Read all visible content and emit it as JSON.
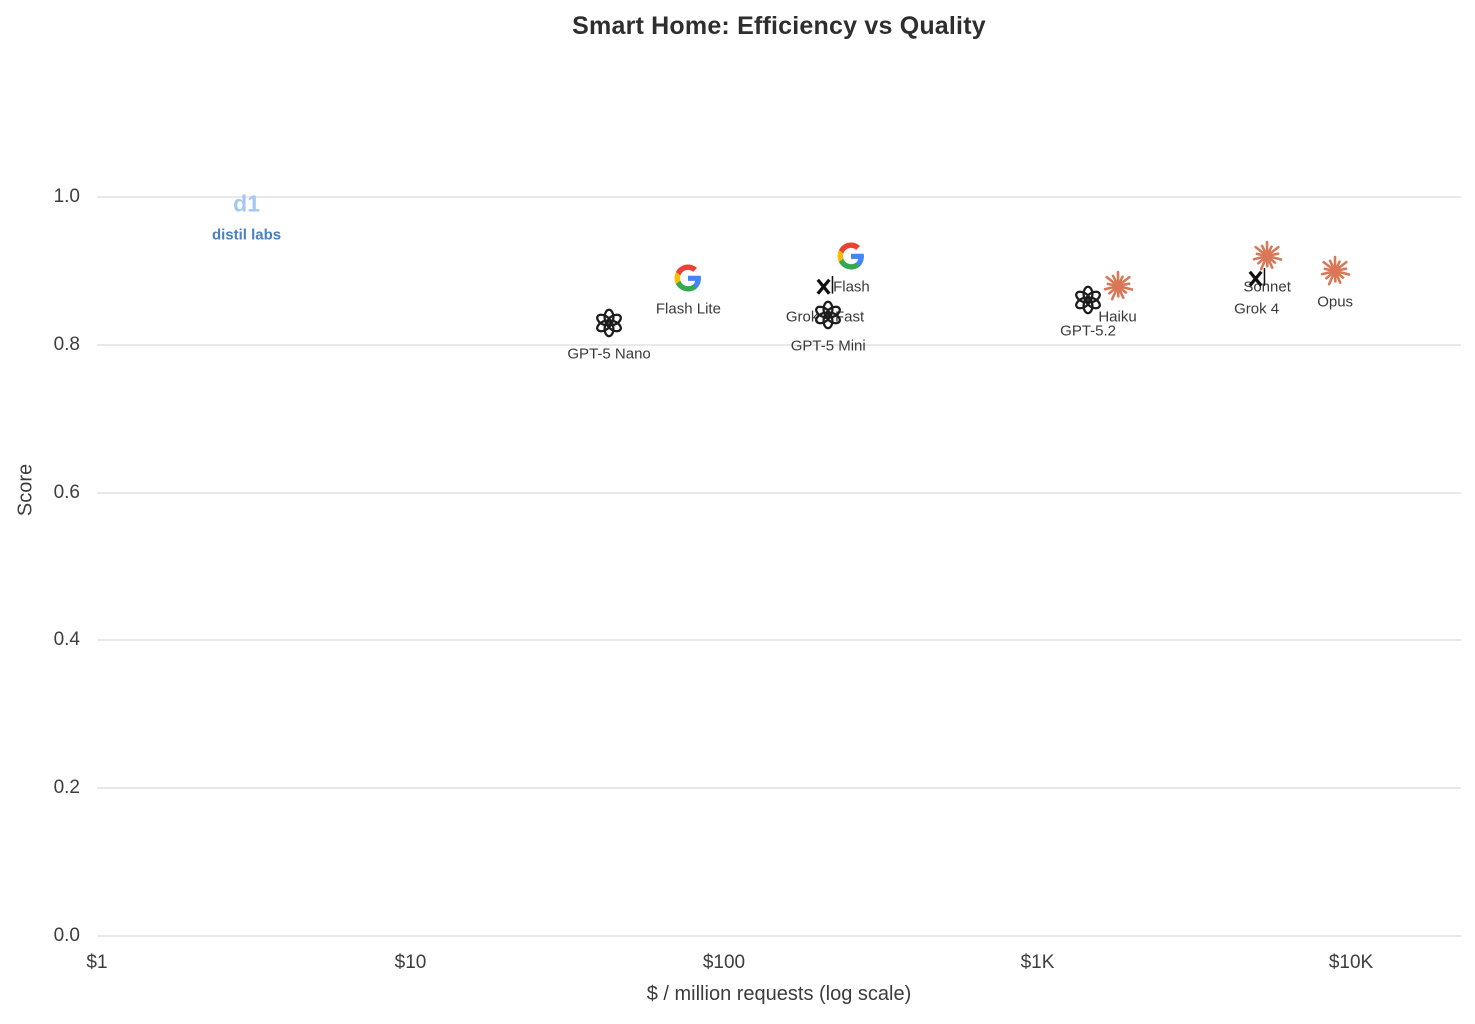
{
  "chart_data": {
    "type": "scatter",
    "title": "Smart Home: Efficiency vs Quality",
    "xlabel": "$ / million requests (log scale)",
    "ylabel": "Score",
    "x_scale": "log",
    "grid": "horizontal-only",
    "legend": "none",
    "x_ticks": [
      {
        "value": 1,
        "label": "$1"
      },
      {
        "value": 10,
        "label": "$10"
      },
      {
        "value": 100,
        "label": "$100"
      },
      {
        "value": 1000,
        "label": "$1K"
      },
      {
        "value": 10000,
        "label": "$10K"
      }
    ],
    "y_ticks": [
      {
        "value": 0.0,
        "label": "0.0"
      },
      {
        "value": 0.2,
        "label": "0.2"
      },
      {
        "value": 0.4,
        "label": "0.4"
      },
      {
        "value": 0.6,
        "label": "0.6"
      },
      {
        "value": 0.8,
        "label": "0.8"
      },
      {
        "value": 1.0,
        "label": "1.0"
      }
    ],
    "xlim_dollars": [
      1,
      22000
    ],
    "ylim": [
      0.0,
      1.05
    ],
    "points": [
      {
        "label": "distil labs",
        "vendor": "distil-labs",
        "logo_text": "d1",
        "cost_per_million": 3,
        "score": 0.99
      },
      {
        "label": "GPT-5 Nano",
        "vendor": "openai",
        "cost_per_million": 43,
        "score": 0.83
      },
      {
        "label": "Flash Lite",
        "vendor": "google",
        "cost_per_million": 77,
        "score": 0.89
      },
      {
        "label": "Flash",
        "vendor": "google",
        "cost_per_million": 255,
        "score": 0.92
      },
      {
        "label": "Grok 4 Fast",
        "vendor": "xai",
        "cost_per_million": 210,
        "score": 0.88
      },
      {
        "label": "GPT-5 Mini",
        "vendor": "openai",
        "cost_per_million": 215,
        "score": 0.84
      },
      {
        "label": "GPT-5.2",
        "vendor": "openai",
        "cost_per_million": 1450,
        "score": 0.86
      },
      {
        "label": "Haiku",
        "vendor": "anthropic",
        "cost_per_million": 1800,
        "score": 0.88
      },
      {
        "label": "Grok 4",
        "vendor": "xai",
        "cost_per_million": 5000,
        "score": 0.89
      },
      {
        "label": "Sonnet",
        "vendor": "anthropic",
        "cost_per_million": 5400,
        "score": 0.92
      },
      {
        "label": "Opus",
        "vendor": "anthropic",
        "cost_per_million": 8900,
        "score": 0.9
      }
    ]
  },
  "colors": {
    "openai": "#1d1d1d",
    "xai": "#111111",
    "anthropic": "#D97757",
    "google_blue": "#4285F4",
    "google_green": "#34A853",
    "google_yellow": "#FBBC05",
    "google_red": "#EA4335",
    "distil_labs_logo": "#a3c7f2",
    "distil_labs_label": "#4a7fc1",
    "grid": "#e9e9e9",
    "title_text": "#2e2e2e",
    "tick_text": "#3d3d3d",
    "point_label_text": "#3a3a3a",
    "background": "#ffffff"
  }
}
